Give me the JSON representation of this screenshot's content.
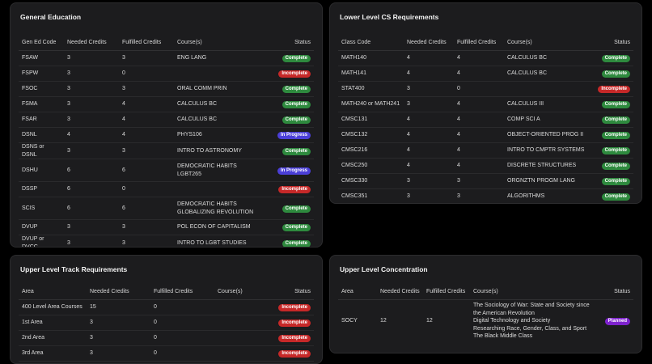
{
  "gen_ed": {
    "title": "General Education",
    "headers": [
      "Gen Ed Code",
      "Needed Credits",
      "Fulfilled Credits",
      "Course(s)",
      "Status"
    ],
    "rows": [
      {
        "code": "FSAW",
        "needed": "3",
        "fulfilled": "3",
        "courses": [
          "ENG LANG"
        ],
        "status": "Complete"
      },
      {
        "code": "FSPW",
        "needed": "3",
        "fulfilled": "0",
        "courses": [],
        "status": "Incomplete"
      },
      {
        "code": "FSOC",
        "needed": "3",
        "fulfilled": "3",
        "courses": [
          "ORAL COMM PRIN"
        ],
        "status": "Complete"
      },
      {
        "code": "FSMA",
        "needed": "3",
        "fulfilled": "4",
        "courses": [
          "CALCULUS BC"
        ],
        "status": "Complete"
      },
      {
        "code": "FSAR",
        "needed": "3",
        "fulfilled": "4",
        "courses": [
          "CALCULUS BC"
        ],
        "status": "Complete"
      },
      {
        "code": "DSNL",
        "needed": "4",
        "fulfilled": "4",
        "courses": [
          "PHYS106"
        ],
        "status": "In Progress"
      },
      {
        "code": "DSNS or DSNL",
        "needed": "3",
        "fulfilled": "3",
        "courses": [
          "INTRO TO ASTRONOMY"
        ],
        "status": "Complete"
      },
      {
        "code": "DSHU",
        "needed": "6",
        "fulfilled": "6",
        "courses": [
          "DEMOCRATIC HABITS",
          "LGBT265"
        ],
        "status": "In Progress"
      },
      {
        "code": "DSSP",
        "needed": "6",
        "fulfilled": "0",
        "courses": [],
        "status": "Incomplete"
      },
      {
        "code": "SCIS",
        "needed": "6",
        "fulfilled": "6",
        "courses": [
          "DEMOCRATIC HABITS",
          "GLOBALIZING REVOLUTION"
        ],
        "status": "Complete"
      },
      {
        "code": "DVUP",
        "needed": "3",
        "fulfilled": "3",
        "courses": [
          "POL ECON OF CAPITALISM"
        ],
        "status": "Complete"
      },
      {
        "code": "DVUP or DVCC",
        "needed": "3",
        "fulfilled": "3",
        "courses": [
          "INTRO TO LGBT STUDIES"
        ],
        "status": "Complete"
      }
    ]
  },
  "lower_cs": {
    "title": "Lower Level CS Requirements",
    "headers": [
      "Class Code",
      "Needed Credits",
      "Fulfilled Credits",
      "Course(s)",
      "Status"
    ],
    "rows": [
      {
        "code": "MATH140",
        "needed": "4",
        "fulfilled": "4",
        "courses": [
          "CALCULUS BC"
        ],
        "status": "Complete"
      },
      {
        "code": "MATH141",
        "needed": "4",
        "fulfilled": "4",
        "courses": [
          "CALCULUS BC"
        ],
        "status": "Complete"
      },
      {
        "code": "STAT400",
        "needed": "3",
        "fulfilled": "0",
        "courses": [],
        "status": "Incomplete"
      },
      {
        "code": "MATH240 or MATH241",
        "needed": "3",
        "fulfilled": "4",
        "courses": [
          "CALCULUS III"
        ],
        "status": "Complete"
      },
      {
        "code": "CMSC131",
        "needed": "4",
        "fulfilled": "4",
        "courses": [
          "COMP SCI A"
        ],
        "status": "Complete"
      },
      {
        "code": "CMSC132",
        "needed": "4",
        "fulfilled": "4",
        "courses": [
          "OBJECT-ORIENTED PROG II"
        ],
        "status": "Complete"
      },
      {
        "code": "CMSC216",
        "needed": "4",
        "fulfilled": "4",
        "courses": [
          "INTRO TO CMPTR SYSTEMS"
        ],
        "status": "Complete"
      },
      {
        "code": "CMSC250",
        "needed": "4",
        "fulfilled": "4",
        "courses": [
          "DISCRETE STRUCTURES"
        ],
        "status": "Complete"
      },
      {
        "code": "CMSC330",
        "needed": "3",
        "fulfilled": "3",
        "courses": [
          "ORGNZTN PROGM LANG"
        ],
        "status": "Complete"
      },
      {
        "code": "CMSC351",
        "needed": "3",
        "fulfilled": "3",
        "courses": [
          "ALGORITHMS"
        ],
        "status": "Complete"
      }
    ]
  },
  "upper_track": {
    "title": "Upper Level Track Requirements",
    "headers": [
      "Area",
      "Needed Credits",
      "Fulfilled Credits",
      "Course(s)",
      "Status"
    ],
    "rows": [
      {
        "code": "400 Level Area Courses",
        "needed": "15",
        "fulfilled": "0",
        "courses": [],
        "status": "Incomplete"
      },
      {
        "code": "1st Area",
        "needed": "3",
        "fulfilled": "0",
        "courses": [],
        "status": "Incomplete"
      },
      {
        "code": "2nd Area",
        "needed": "3",
        "fulfilled": "0",
        "courses": [],
        "status": "Incomplete"
      },
      {
        "code": "3rd Area",
        "needed": "3",
        "fulfilled": "0",
        "courses": [],
        "status": "Incomplete"
      }
    ]
  },
  "upper_conc": {
    "title": "Upper Level Concentration",
    "headers": [
      "Area",
      "Needed Credits",
      "Fulfilled Credits",
      "Course(s)",
      "Status"
    ],
    "rows": [
      {
        "code": "SOCY",
        "needed": "12",
        "fulfilled": "12",
        "courses": [
          "The Sociology of War: State and Society since the American Revolution",
          "Digital Technology and Society",
          "Researching Race, Gender, Class, and Sport",
          "The Black Middle Class"
        ],
        "status": "Planned"
      }
    ]
  },
  "status_colors": {
    "Complete": "#2e8a3e",
    "Incomplete": "#c62828",
    "In Progress": "#4b3fd8",
    "Planned": "#7e22ce"
  }
}
